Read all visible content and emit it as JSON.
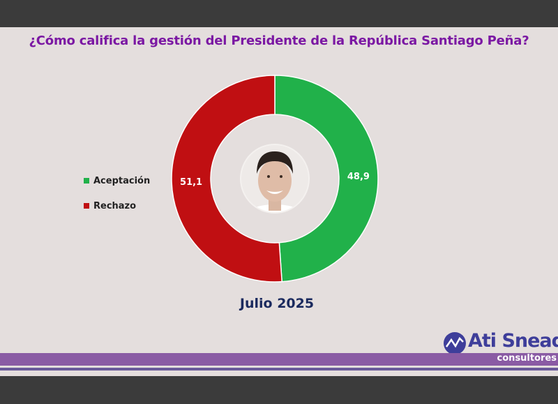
{
  "title": "¿Cómo califica la gestión del Presidente de la República Santiago Peña?",
  "date_label": "Julio 2025",
  "logo": {
    "name": "Ati Snead",
    "sub": "consultores"
  },
  "colors": {
    "aceptacion": "#21b14a",
    "rechazo": "#c00f12",
    "title": "#7b18a3",
    "date": "#1b2a5e"
  },
  "chart_data": {
    "type": "pie",
    "variant": "donut",
    "title": "¿Cómo califica la gestión del Presidente de la República Santiago Peña?",
    "legend_placement": "left",
    "series": [
      {
        "name": "Aceptación",
        "value": 48.9,
        "label": "48,9",
        "color": "#21b14a"
      },
      {
        "name": "Rechazo",
        "value": 51.1,
        "label": "51,1",
        "color": "#c00f12"
      }
    ]
  }
}
